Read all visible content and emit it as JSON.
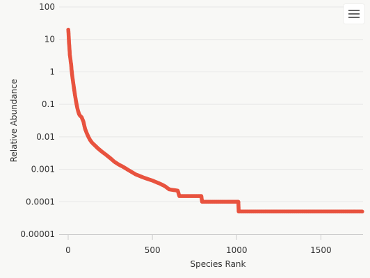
{
  "chart_data": {
    "type": "line",
    "title": "",
    "xlabel": "Species Rank",
    "ylabel": "Relative Abundance",
    "xlim": [
      0,
      1750
    ],
    "ylim": [
      1e-05,
      100
    ],
    "yscale": "log",
    "xticks": [
      0,
      500,
      1000,
      1500
    ],
    "xtick_labels": [
      "0",
      "500",
      "1000",
      "1500"
    ],
    "yticks": [
      100,
      10,
      1,
      0.1,
      0.01,
      0.001,
      0.0001,
      1e-05
    ],
    "ytick_labels": [
      "100",
      "10",
      "1",
      "0.1",
      "0.01",
      "0.001",
      "0.0001",
      "0.00001"
    ],
    "grid": true,
    "legend": "none",
    "series": [
      {
        "color": "#e8533f",
        "marker": "circle",
        "x": [
          1,
          3,
          5,
          8,
          10,
          13,
          15,
          18,
          20,
          25,
          30,
          35,
          40,
          45,
          50,
          55,
          60,
          65,
          70,
          80,
          90,
          100,
          110,
          120,
          130,
          140,
          150,
          175,
          200,
          225,
          250,
          275,
          300,
          325,
          350,
          400,
          450,
          500,
          550,
          575,
          600,
          650,
          660,
          700,
          750,
          780,
          790,
          795,
          800,
          850,
          900,
          950,
          1000,
          1010,
          1012,
          1050,
          1100,
          1200,
          1300,
          1400,
          1500,
          1600,
          1700,
          1745
        ],
        "y": [
          20,
          13,
          8,
          5,
          3.3,
          2.6,
          2.1,
          1.6,
          1.2,
          0.7,
          0.45,
          0.3,
          0.2,
          0.14,
          0.1,
          0.075,
          0.06,
          0.05,
          0.045,
          0.04,
          0.03,
          0.018,
          0.013,
          0.01,
          0.008,
          0.0068,
          0.006,
          0.0045,
          0.0035,
          0.0028,
          0.0022,
          0.0017,
          0.0014,
          0.0012,
          0.001,
          0.0007,
          0.00055,
          0.00045,
          0.00035,
          0.0003,
          0.00024,
          0.00022,
          0.00015,
          0.00015,
          0.00015,
          0.00015,
          0.00015,
          0.0001,
          0.0001,
          0.0001,
          0.0001,
          0.0001,
          0.0001,
          0.0001,
          5e-05,
          5e-05,
          5e-05,
          5e-05,
          5e-05,
          5e-05,
          5e-05,
          5e-05,
          5e-05,
          5e-05
        ]
      }
    ]
  },
  "toolbar": {
    "menu_icon": "hamburger-menu-icon"
  }
}
